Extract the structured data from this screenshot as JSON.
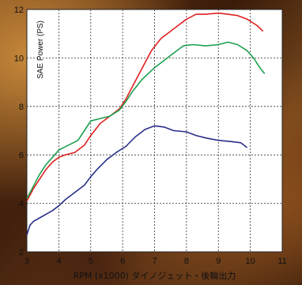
{
  "chart_data": {
    "type": "line",
    "title": "",
    "xlabel": "RPM (x1000) ダイノジェット・後輪出力",
    "ylabel": "SAE Power (PS)",
    "xlim": [
      3,
      11
    ],
    "ylim": [
      2,
      12
    ],
    "x_ticks": [
      3,
      4,
      5,
      6,
      7,
      8,
      9,
      10,
      11
    ],
    "y_ticks": [
      2,
      4,
      6,
      8,
      10,
      12
    ],
    "grid": true,
    "series": [
      {
        "color": "#e02020",
        "points": [
          [
            3.0,
            4.1
          ],
          [
            3.2,
            4.6
          ],
          [
            3.4,
            5.0
          ],
          [
            3.6,
            5.4
          ],
          [
            3.8,
            5.7
          ],
          [
            4.0,
            5.9
          ],
          [
            4.2,
            6.0
          ],
          [
            4.5,
            6.1
          ],
          [
            4.8,
            6.4
          ],
          [
            5.0,
            6.8
          ],
          [
            5.3,
            7.3
          ],
          [
            5.6,
            7.6
          ],
          [
            5.9,
            7.9
          ],
          [
            6.1,
            8.3
          ],
          [
            6.3,
            8.8
          ],
          [
            6.5,
            9.3
          ],
          [
            6.7,
            9.8
          ],
          [
            6.9,
            10.3
          ],
          [
            7.2,
            10.8
          ],
          [
            7.5,
            11.1
          ],
          [
            7.8,
            11.4
          ],
          [
            8.0,
            11.6
          ],
          [
            8.3,
            11.8
          ],
          [
            8.6,
            11.8
          ],
          [
            9.0,
            11.85
          ],
          [
            9.3,
            11.8
          ],
          [
            9.6,
            11.75
          ],
          [
            9.9,
            11.6
          ],
          [
            10.2,
            11.35
          ],
          [
            10.4,
            11.1
          ]
        ]
      },
      {
        "color": "#1ea050",
        "points": [
          [
            3.0,
            4.2
          ],
          [
            3.2,
            4.7
          ],
          [
            3.4,
            5.2
          ],
          [
            3.6,
            5.6
          ],
          [
            3.8,
            5.9
          ],
          [
            4.0,
            6.2
          ],
          [
            4.3,
            6.4
          ],
          [
            4.6,
            6.6
          ],
          [
            4.8,
            7.0
          ],
          [
            5.0,
            7.4
          ],
          [
            5.3,
            7.5
          ],
          [
            5.6,
            7.6
          ],
          [
            5.9,
            7.85
          ],
          [
            6.1,
            8.2
          ],
          [
            6.3,
            8.6
          ],
          [
            6.6,
            9.1
          ],
          [
            7.0,
            9.6
          ],
          [
            7.3,
            9.9
          ],
          [
            7.6,
            10.2
          ],
          [
            7.9,
            10.5
          ],
          [
            8.2,
            10.55
          ],
          [
            8.6,
            10.5
          ],
          [
            9.0,
            10.55
          ],
          [
            9.3,
            10.65
          ],
          [
            9.6,
            10.55
          ],
          [
            9.9,
            10.3
          ],
          [
            10.1,
            10.0
          ],
          [
            10.3,
            9.6
          ],
          [
            10.45,
            9.35
          ]
        ]
      },
      {
        "color": "#2a2f8a",
        "points": [
          [
            3.0,
            2.7
          ],
          [
            3.1,
            3.1
          ],
          [
            3.2,
            3.25
          ],
          [
            3.4,
            3.4
          ],
          [
            3.6,
            3.55
          ],
          [
            3.8,
            3.7
          ],
          [
            4.0,
            3.9
          ],
          [
            4.2,
            4.15
          ],
          [
            4.5,
            4.45
          ],
          [
            4.8,
            4.75
          ],
          [
            5.0,
            5.1
          ],
          [
            5.2,
            5.4
          ],
          [
            5.5,
            5.8
          ],
          [
            5.8,
            6.1
          ],
          [
            6.1,
            6.35
          ],
          [
            6.4,
            6.75
          ],
          [
            6.7,
            7.05
          ],
          [
            7.0,
            7.2
          ],
          [
            7.3,
            7.15
          ],
          [
            7.6,
            7.0
          ],
          [
            8.0,
            6.95
          ],
          [
            8.3,
            6.8
          ],
          [
            8.6,
            6.7
          ],
          [
            9.0,
            6.6
          ],
          [
            9.4,
            6.55
          ],
          [
            9.7,
            6.5
          ],
          [
            9.9,
            6.3
          ]
        ]
      }
    ]
  }
}
